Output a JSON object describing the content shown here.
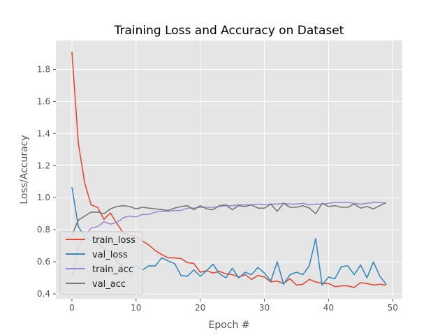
{
  "chart_data": {
    "type": "line",
    "title": "Training Loss and Accuracy on Dataset",
    "xlabel": "Epoch #",
    "ylabel": "Loss/Accuracy",
    "xlim": [
      -2.5,
      51.5
    ],
    "ylim": [
      0.37,
      1.98
    ],
    "xticks": [
      0,
      10,
      20,
      30,
      40,
      50
    ],
    "yticks": [
      0.4,
      0.6,
      0.8,
      1.0,
      1.2,
      1.4,
      1.6,
      1.8
    ],
    "ytick_labels": [
      "0.4",
      "0.6",
      "0.8",
      "1.0",
      "1.2",
      "1.4",
      "1.6",
      "1.8"
    ],
    "grid": true,
    "legend_position": "lower-left",
    "x": [
      0,
      1,
      2,
      3,
      4,
      5,
      6,
      7,
      8,
      9,
      10,
      11,
      12,
      13,
      14,
      15,
      16,
      17,
      18,
      19,
      20,
      21,
      22,
      23,
      24,
      25,
      26,
      27,
      28,
      29,
      30,
      31,
      32,
      33,
      34,
      35,
      36,
      37,
      38,
      39,
      40,
      41,
      42,
      43,
      44,
      45,
      46,
      47,
      48,
      49
    ],
    "series": [
      {
        "name": "train_loss",
        "color": "#e24a33",
        "values": [
          1.91,
          1.34,
          1.09,
          0.955,
          0.94,
          0.865,
          0.905,
          0.84,
          0.78,
          0.765,
          0.755,
          0.73,
          0.705,
          0.67,
          0.645,
          0.625,
          0.625,
          0.62,
          0.595,
          0.59,
          0.535,
          0.545,
          0.53,
          0.54,
          0.525,
          0.52,
          0.505,
          0.52,
          0.49,
          0.515,
          0.505,
          0.475,
          0.48,
          0.465,
          0.495,
          0.455,
          0.46,
          0.49,
          0.475,
          0.465,
          0.465,
          0.445,
          0.45,
          0.45,
          0.44,
          0.47,
          0.465,
          0.455,
          0.46,
          0.455
        ]
      },
      {
        "name": "val_loss",
        "color": "#348abd",
        "values": [
          1.065,
          0.82,
          0.755,
          0.73,
          0.72,
          0.68,
          0.66,
          0.6,
          0.575,
          0.56,
          0.575,
          0.55,
          0.575,
          0.575,
          0.625,
          0.605,
          0.59,
          0.515,
          0.51,
          0.55,
          0.51,
          0.545,
          0.585,
          0.525,
          0.5,
          0.56,
          0.5,
          0.535,
          0.52,
          0.565,
          0.53,
          0.48,
          0.6,
          0.46,
          0.52,
          0.535,
          0.52,
          0.575,
          0.745,
          0.455,
          0.505,
          0.495,
          0.57,
          0.575,
          0.52,
          0.58,
          0.5,
          0.6,
          0.51,
          0.46
        ]
      },
      {
        "name": "train_acc",
        "color": "#988ed5",
        "values": [
          0.51,
          0.69,
          0.76,
          0.81,
          0.82,
          0.85,
          0.835,
          0.845,
          0.875,
          0.885,
          0.88,
          0.895,
          0.895,
          0.91,
          0.915,
          0.915,
          0.92,
          0.92,
          0.935,
          0.935,
          0.94,
          0.94,
          0.94,
          0.945,
          0.95,
          0.95,
          0.955,
          0.955,
          0.955,
          0.96,
          0.955,
          0.96,
          0.96,
          0.965,
          0.96,
          0.96,
          0.965,
          0.955,
          0.96,
          0.96,
          0.965,
          0.97,
          0.97,
          0.97,
          0.965,
          0.96,
          0.965,
          0.97,
          0.97,
          0.965
        ]
      },
      {
        "name": "val_acc",
        "color": "#777777",
        "values": [
          0.765,
          0.86,
          0.885,
          0.91,
          0.91,
          0.9,
          0.93,
          0.945,
          0.95,
          0.945,
          0.93,
          0.94,
          0.935,
          0.93,
          0.925,
          0.92,
          0.935,
          0.945,
          0.95,
          0.925,
          0.95,
          0.93,
          0.925,
          0.95,
          0.955,
          0.925,
          0.95,
          0.945,
          0.955,
          0.935,
          0.935,
          0.96,
          0.915,
          0.965,
          0.94,
          0.94,
          0.95,
          0.935,
          0.9,
          0.965,
          0.945,
          0.95,
          0.94,
          0.94,
          0.96,
          0.935,
          0.945,
          0.93,
          0.95,
          0.97
        ]
      }
    ]
  }
}
